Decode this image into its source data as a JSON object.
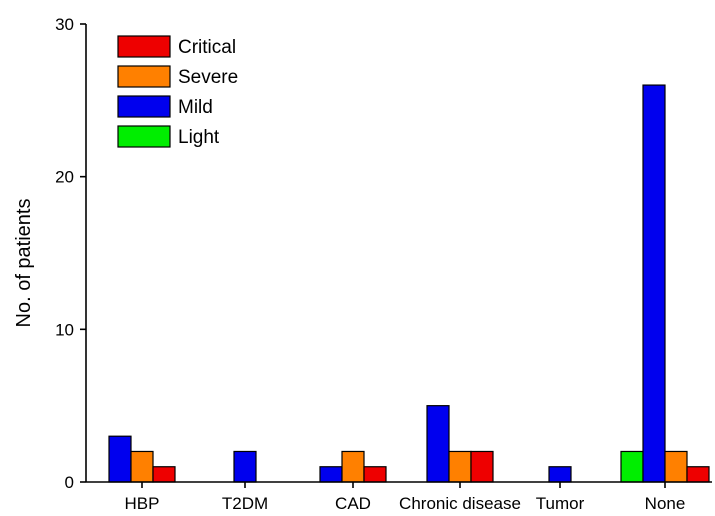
{
  "chart_data": {
    "type": "bar",
    "title": "",
    "xlabel": "",
    "ylabel": "No. of patients",
    "ylim": [
      0,
      30
    ],
    "yticks": [
      0,
      10,
      20,
      30
    ],
    "grid": false,
    "legend_position": "top-left",
    "categories": [
      "HBP",
      "T2DM",
      "CAD",
      "Chronic disease",
      "Tumor",
      "None"
    ],
    "series": [
      {
        "name": "Light",
        "color": "#00ee00",
        "values": [
          0,
          0,
          0,
          0,
          0,
          2
        ]
      },
      {
        "name": "Mild",
        "color": "#0000ee",
        "values": [
          3,
          2,
          1,
          5,
          1,
          26
        ]
      },
      {
        "name": "Severe",
        "color": "#ff8000",
        "values": [
          2,
          0,
          2,
          2,
          0,
          2
        ]
      },
      {
        "name": "Critical",
        "color": "#ee0000",
        "values": [
          1,
          0,
          1,
          2,
          0,
          1
        ]
      }
    ],
    "legend_order": [
      "Critical",
      "Severe",
      "Mild",
      "Light"
    ]
  }
}
